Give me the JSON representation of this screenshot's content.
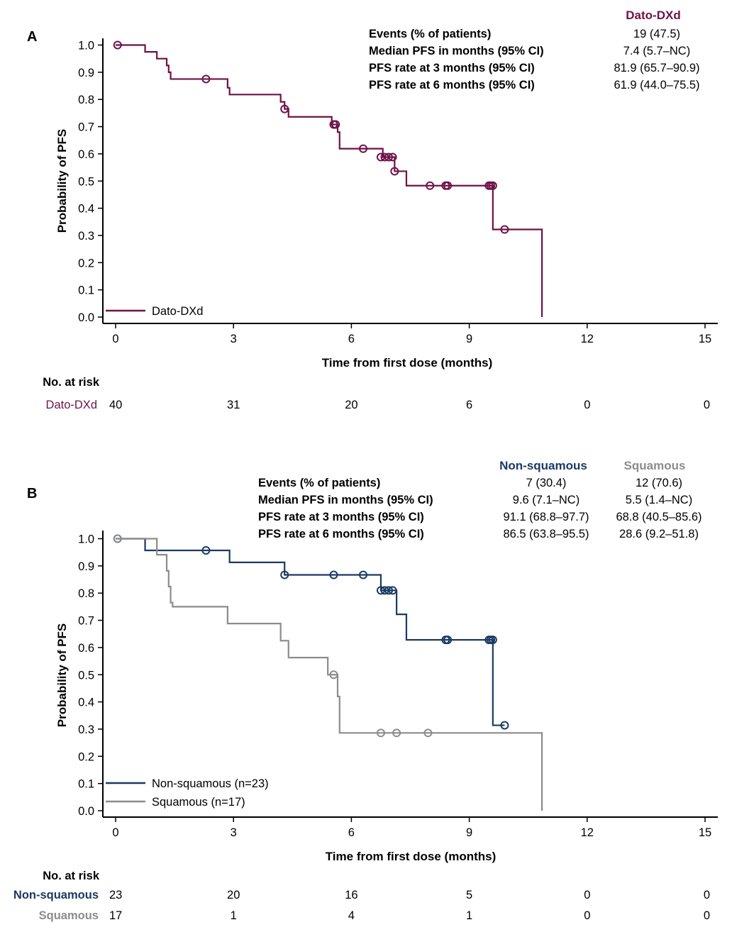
{
  "chart_data": [
    {
      "panel": "A",
      "type": "line",
      "subtype": "kaplan-meier",
      "xlabel": "Time from first dose (months)",
      "ylabel": "Probability of PFS",
      "xlim": [
        0,
        15
      ],
      "ylim": [
        0,
        1
      ],
      "xticks": [
        0,
        3,
        6,
        9,
        12,
        15
      ],
      "yticks": [
        0.0,
        0.1,
        0.2,
        0.3,
        0.4,
        0.5,
        0.6,
        0.7,
        0.8,
        0.9,
        1.0
      ],
      "xtick_labels": [
        "0",
        "3",
        "6",
        "9",
        "12",
        "15"
      ],
      "ytick_labels": [
        "0.0",
        "0.1",
        "0.2",
        "0.3",
        "0.4",
        "0.5",
        "0.6",
        "0.7",
        "0.8",
        "0.9",
        "1.0"
      ],
      "legend": [
        {
          "label": "Dato-DXd",
          "color": "#6e1248"
        }
      ],
      "series": [
        {
          "name": "Dato-DXd",
          "color": "#6e1248",
          "steps": [
            [
              0,
              1.0
            ],
            [
              0.75,
              0.975
            ],
            [
              1.05,
              0.95
            ],
            [
              1.3,
              0.925
            ],
            [
              1.35,
              0.9
            ],
            [
              1.4,
              0.875
            ],
            [
              2.85,
              0.843
            ],
            [
              2.9,
              0.818
            ],
            [
              4.2,
              0.791
            ],
            [
              4.3,
              0.765
            ],
            [
              4.4,
              0.736
            ],
            [
              5.5,
              0.708
            ],
            [
              5.65,
              0.68
            ],
            [
              5.7,
              0.619
            ],
            [
              6.8,
              0.588
            ],
            [
              7.1,
              0.536
            ],
            [
              7.4,
              0.483
            ],
            [
              9.6,
              0.322
            ],
            [
              10.85,
              0.0
            ]
          ],
          "end_x": 10.85,
          "censored": [
            [
              0.05,
              1.0
            ],
            [
              2.3,
              0.875
            ],
            [
              4.3,
              0.765
            ],
            [
              5.55,
              0.708
            ],
            [
              5.6,
              0.708
            ],
            [
              6.3,
              0.619
            ],
            [
              6.75,
              0.588
            ],
            [
              6.85,
              0.588
            ],
            [
              6.95,
              0.588
            ],
            [
              7.05,
              0.588
            ],
            [
              7.1,
              0.536
            ],
            [
              8.0,
              0.483
            ],
            [
              8.4,
              0.483
            ],
            [
              8.45,
              0.483
            ],
            [
              9.5,
              0.483
            ],
            [
              9.55,
              0.483
            ],
            [
              9.6,
              0.483
            ],
            [
              9.9,
              0.322
            ]
          ]
        }
      ],
      "table": {
        "group_headers": [
          "Dato-DXd"
        ],
        "rows": [
          {
            "label": "Events (% of patients)",
            "values": [
              "19 (47.5)"
            ]
          },
          {
            "label": "Median PFS in months (95% CI)",
            "values": [
              "7.4 (5.7–NC)"
            ]
          },
          {
            "label": "PFS rate at 3 months (95% CI)",
            "values": [
              "81.9 (65.7–90.9)"
            ]
          },
          {
            "label": "PFS rate at 6 months (95% CI)",
            "values": [
              "61.9 (44.0–75.5)"
            ]
          }
        ]
      },
      "risk_table": {
        "title": "No. at risk",
        "rows": [
          {
            "label": "Dato-DXd",
            "color": "#6e1248",
            "values": [
              "40",
              "31",
              "20",
              "6",
              "0",
              "0"
            ]
          }
        ]
      }
    },
    {
      "panel": "B",
      "type": "line",
      "subtype": "kaplan-meier",
      "xlabel": "Time from first dose (months)",
      "ylabel": "Probability of PFS",
      "xlim": [
        0,
        15
      ],
      "ylim": [
        0,
        1
      ],
      "xticks": [
        0,
        3,
        6,
        9,
        12,
        15
      ],
      "yticks": [
        0.0,
        0.1,
        0.2,
        0.3,
        0.4,
        0.5,
        0.6,
        0.7,
        0.8,
        0.9,
        1.0
      ],
      "xtick_labels": [
        "0",
        "3",
        "6",
        "9",
        "12",
        "15"
      ],
      "ytick_labels": [
        "0.0",
        "0.1",
        "0.2",
        "0.3",
        "0.4",
        "0.5",
        "0.6",
        "0.7",
        "0.8",
        "0.9",
        "1.0"
      ],
      "legend": [
        {
          "label": "Non-squamous (n=23)",
          "color": "#1b3a63"
        },
        {
          "label": "Squamous (n=17)",
          "color": "#8c8c8c"
        }
      ],
      "series": [
        {
          "name": "Non-squamous",
          "color": "#1b3a63",
          "steps": [
            [
              0,
              1.0
            ],
            [
              0.75,
              0.957
            ],
            [
              2.9,
              0.913
            ],
            [
              4.3,
              0.867
            ],
            [
              6.75,
              0.81
            ],
            [
              7.15,
              0.722
            ],
            [
              7.4,
              0.628
            ],
            [
              9.6,
              0.314
            ]
          ],
          "end_x": 9.9,
          "censored": [
            [
              0.05,
              1.0
            ],
            [
              2.3,
              0.957
            ],
            [
              4.3,
              0.867
            ],
            [
              5.55,
              0.867
            ],
            [
              6.3,
              0.867
            ],
            [
              6.75,
              0.81
            ],
            [
              6.85,
              0.81
            ],
            [
              6.95,
              0.81
            ],
            [
              7.05,
              0.81
            ],
            [
              8.4,
              0.628
            ],
            [
              8.45,
              0.628
            ],
            [
              9.5,
              0.628
            ],
            [
              9.55,
              0.628
            ],
            [
              9.6,
              0.628
            ],
            [
              9.9,
              0.314
            ]
          ]
        },
        {
          "name": "Squamous",
          "color": "#8c8c8c",
          "steps": [
            [
              0,
              1.0
            ],
            [
              1.05,
              0.941
            ],
            [
              1.3,
              0.882
            ],
            [
              1.35,
              0.824
            ],
            [
              1.4,
              0.765
            ],
            [
              1.45,
              0.75
            ],
            [
              2.85,
              0.688
            ],
            [
              4.2,
              0.625
            ],
            [
              4.4,
              0.563
            ],
            [
              5.4,
              0.5
            ],
            [
              5.65,
              0.42
            ],
            [
              5.7,
              0.286
            ],
            [
              10.85,
              0.0
            ]
          ],
          "end_x": 10.85,
          "censored": [
            [
              0.05,
              1.0
            ],
            [
              5.55,
              0.5
            ],
            [
              6.75,
              0.286
            ],
            [
              7.15,
              0.286
            ],
            [
              7.95,
              0.286
            ]
          ]
        }
      ],
      "table": {
        "group_headers": [
          "Non-squamous",
          "Squamous"
        ],
        "rows": [
          {
            "label": "Events (% of patients)",
            "values": [
              "7 (30.4)",
              "12 (70.6)"
            ]
          },
          {
            "label": "Median PFS in months (95% CI)",
            "values": [
              "9.6 (7.1–NC)",
              "5.5 (1.4–NC)"
            ]
          },
          {
            "label": "PFS rate at 3 months (95% CI)",
            "values": [
              "91.1 (68.8–97.7)",
              "68.8 (40.5–85.6)"
            ]
          },
          {
            "label": "PFS rate at 6 months (95% CI)",
            "values": [
              "86.5 (63.8–95.5)",
              "28.6 (9.2–51.8)"
            ]
          }
        ]
      },
      "risk_table": {
        "title": "No. at risk",
        "rows": [
          {
            "label": "Non-squamous",
            "color": "#1b3a63",
            "values": [
              "23",
              "20",
              "16",
              "5",
              "0",
              "0"
            ]
          },
          {
            "label": "Squamous",
            "color": "#8c8c8c",
            "values": [
              "17",
              "1",
              "4",
              "1",
              "0",
              "0"
            ]
          }
        ]
      }
    }
  ]
}
